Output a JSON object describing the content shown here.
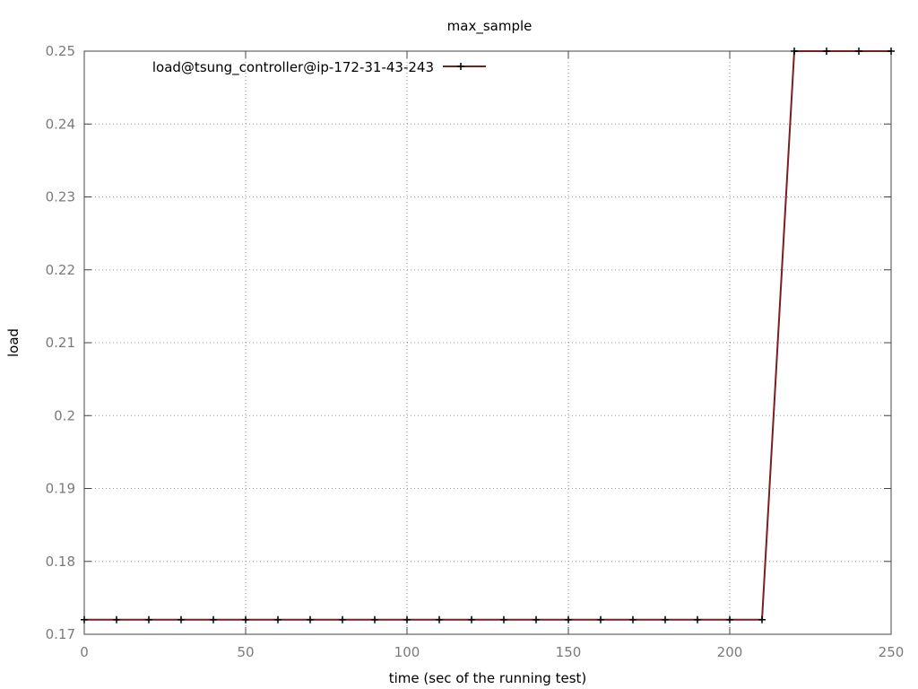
{
  "chart_data": {
    "type": "line",
    "title": "max_sample",
    "xlabel": "time (sec of the running test)",
    "ylabel": "load",
    "xlim": [
      0,
      250
    ],
    "ylim": [
      0.17,
      0.25
    ],
    "xticks": [
      0,
      50,
      100,
      150,
      200,
      250
    ],
    "xtick_labels": [
      "0",
      "50",
      "100",
      "150",
      "200",
      "250"
    ],
    "yticks": [
      0.17,
      0.18,
      0.19,
      0.2,
      0.21,
      0.22,
      0.23,
      0.24,
      0.25
    ],
    "ytick_labels": [
      "0.17",
      "0.18",
      "0.19",
      "0.2",
      "0.21",
      "0.22",
      "0.23",
      "0.24",
      "0.25"
    ],
    "grid": true,
    "legend_position": "top-left",
    "series": [
      {
        "name": "load@tsung_controller@ip-172-31-43-243",
        "color": "#7b1e1e",
        "marker": "plus",
        "x": [
          0,
          10,
          20,
          30,
          40,
          50,
          60,
          70,
          80,
          90,
          100,
          110,
          120,
          130,
          140,
          150,
          160,
          170,
          180,
          190,
          200,
          210,
          220,
          230,
          240,
          250
        ],
        "y": [
          0.172,
          0.172,
          0.172,
          0.172,
          0.172,
          0.172,
          0.172,
          0.172,
          0.172,
          0.172,
          0.172,
          0.172,
          0.172,
          0.172,
          0.172,
          0.172,
          0.172,
          0.172,
          0.172,
          0.172,
          0.172,
          0.172,
          0.25,
          0.25,
          0.25,
          0.25
        ]
      }
    ]
  }
}
